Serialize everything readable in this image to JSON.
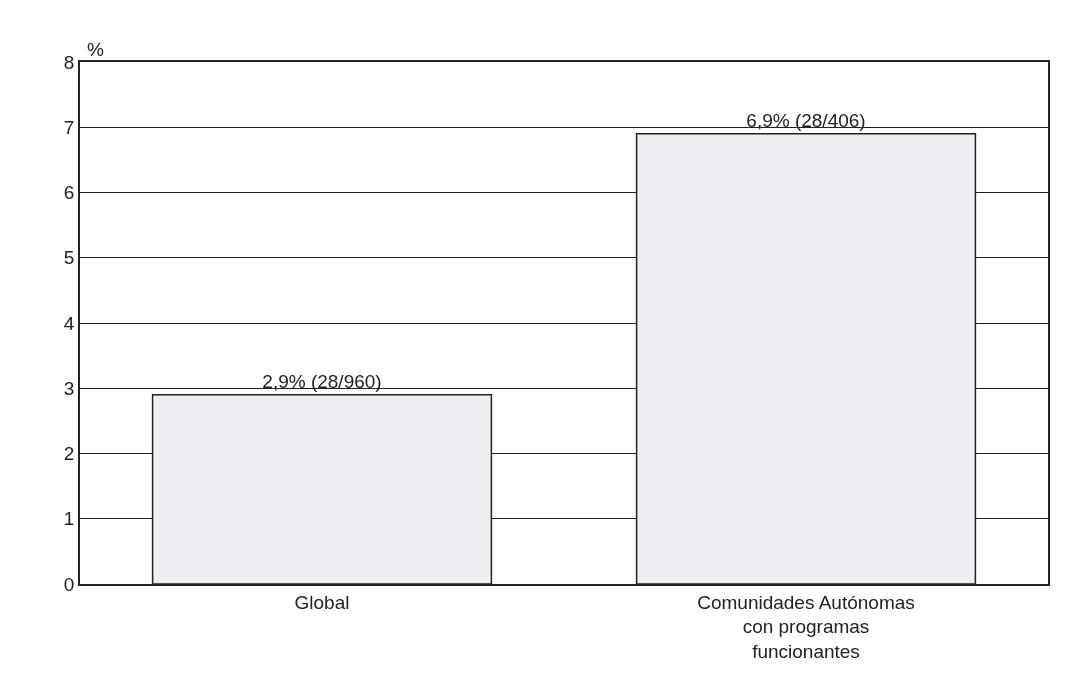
{
  "chart_data": {
    "type": "bar",
    "ylabel": "%",
    "categories": [
      "Global",
      "Comunidades Autónomas\ncon programas\nfuncionantes"
    ],
    "values": [
      2.9,
      6.9
    ],
    "value_labels": [
      "2,9% (28/960)",
      "6,9% (28/406)"
    ],
    "color": "#eceef1",
    "ylim": [
      0,
      8
    ],
    "yticks": [
      0,
      1,
      2,
      3,
      4,
      5,
      6,
      7,
      8
    ],
    "grid": "y"
  }
}
